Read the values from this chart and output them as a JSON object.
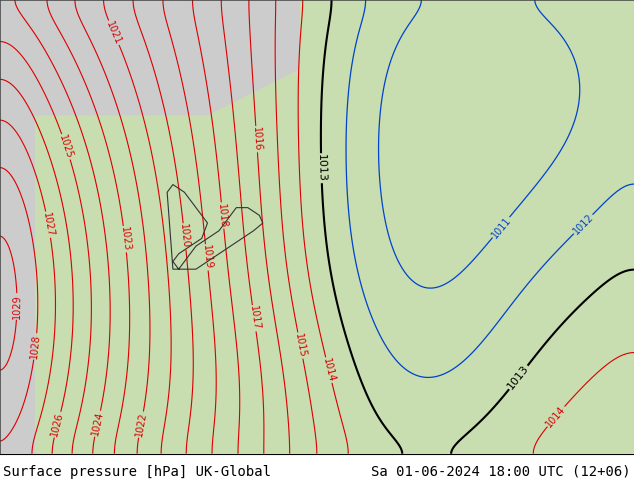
{
  "title_left": "Surface pressure [hPa] UK-Global",
  "title_right": "Sa 01-06-2024 18:00 UTC (12+06)",
  "land_green": "#b8d8a8",
  "land_gray": "#c8c8c8",
  "sea_gray": "#d8d8d8",
  "bg_green": "#c0dca0",
  "white": "#ffffff",
  "red_color": "#dd0000",
  "blue_color": "#0044cc",
  "black_color": "#000000",
  "gray_border": "#888888",
  "title_fontsize": 10,
  "label_fontsize": 7,
  "fig_width": 6.34,
  "fig_height": 4.9,
  "dpi": 100
}
